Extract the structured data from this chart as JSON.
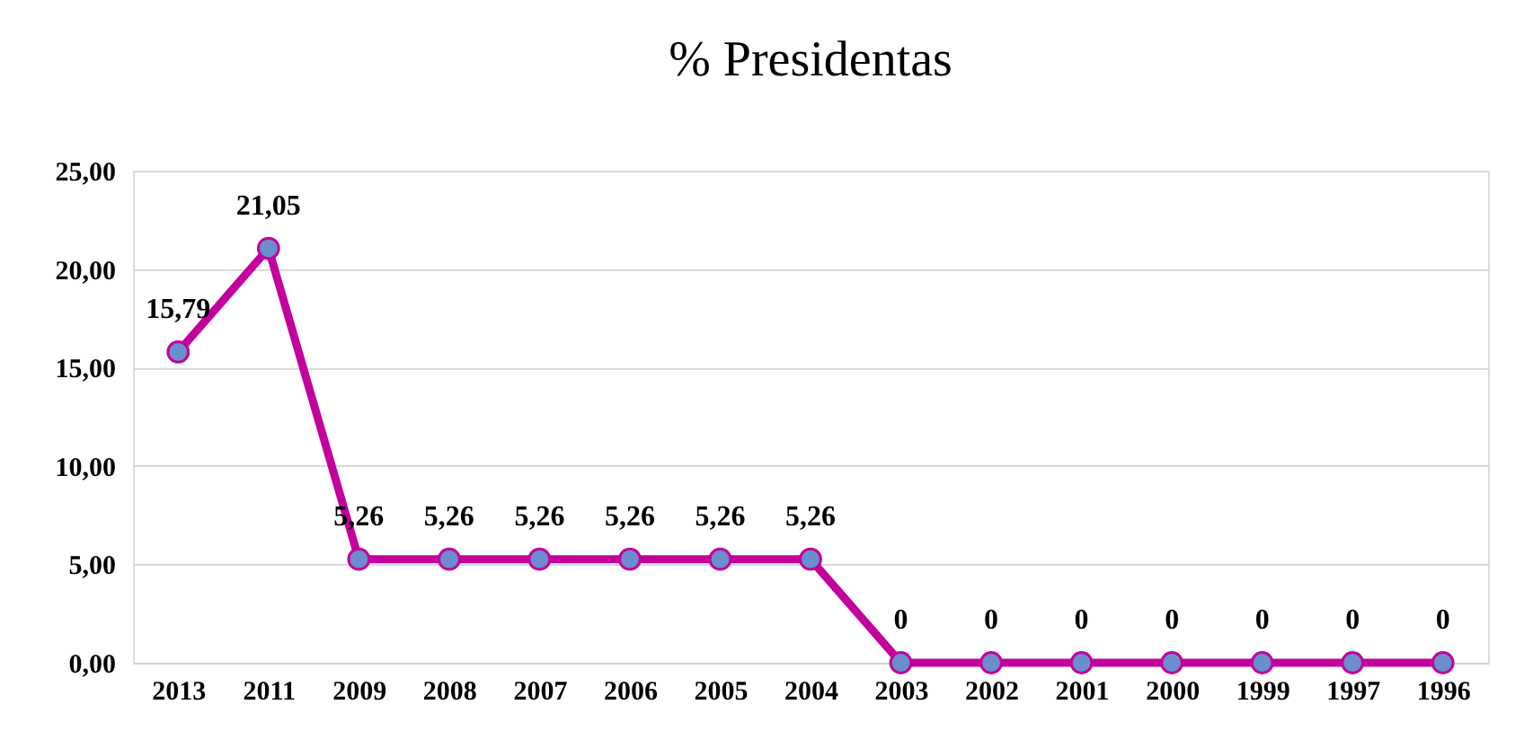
{
  "chart_data": {
    "type": "line",
    "title": "% Presidentas",
    "categories": [
      "2013",
      "2011",
      "2009",
      "2008",
      "2007",
      "2006",
      "2005",
      "2004",
      "2003",
      "2002",
      "2001",
      "2000",
      "1999",
      "1997",
      "1996"
    ],
    "series": [
      {
        "color": "#c4009c",
        "values": [
          15.79,
          21.05,
          5.26,
          5.26,
          5.26,
          5.26,
          5.26,
          5.26,
          0,
          0,
          0,
          0,
          0,
          0,
          0
        ],
        "value_labels": [
          "15,79",
          "21,05",
          "5,26",
          "5,26",
          "5,26",
          "5,26",
          "5,26",
          "5,26",
          "0",
          "0",
          "0",
          "0",
          "0",
          "0",
          "0"
        ]
      }
    ],
    "ylim": [
      0,
      25
    ],
    "yticks": [
      {
        "value": 0,
        "label": "0,00"
      },
      {
        "value": 5,
        "label": "5,00"
      },
      {
        "value": 10,
        "label": "10,00"
      },
      {
        "value": 15,
        "label": "15,00"
      },
      {
        "value": 20,
        "label": "20,00"
      },
      {
        "value": 25,
        "label": "25,00"
      }
    ],
    "grid": "y",
    "marker": "circle",
    "line_style": "solid"
  }
}
